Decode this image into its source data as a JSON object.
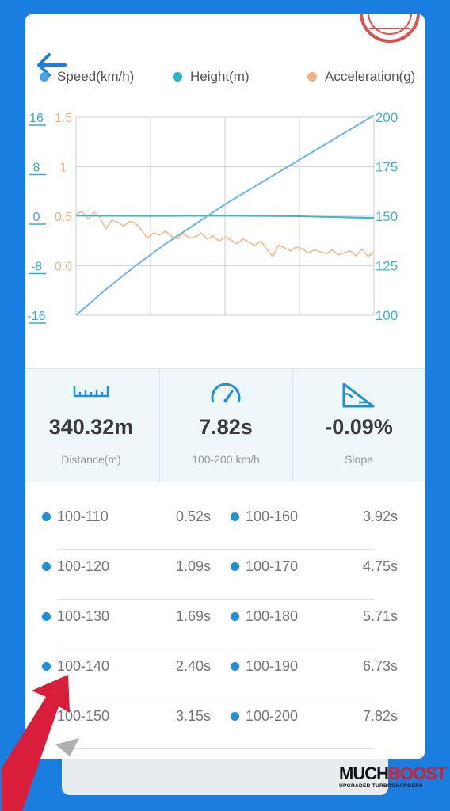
{
  "legend": [
    {
      "label": "Speed(km/h)",
      "color": "#4aa3df"
    },
    {
      "label": "Height(m)",
      "color": "#2bb7c9"
    },
    {
      "label": "Acceleration(g)",
      "color": "#f0b483"
    }
  ],
  "chart_data": {
    "type": "line",
    "left_axis_speed_ticks": [
      "16",
      "8",
      "0",
      "-8",
      "-16"
    ],
    "left_axis_accel_ticks": [
      "1.5",
      "1",
      "0.5",
      "0.0"
    ],
    "right_axis_ticks": [
      "200",
      "175",
      "150",
      "125",
      "100"
    ],
    "speed_range": [
      100,
      200
    ],
    "accel_range": [
      -0.5,
      1.5
    ],
    "height_range": [
      -16,
      16
    ],
    "series": [
      {
        "name": "Speed(km/h)",
        "color": "#6cb6e0",
        "x": [
          0,
          0.1,
          0.2,
          0.3,
          0.4,
          0.5,
          0.6,
          0.7,
          0.8,
          0.9,
          1.0
        ],
        "y": [
          100,
          113,
          125,
          136,
          146,
          156,
          165,
          174,
          183,
          192,
          201
        ]
      },
      {
        "name": "Height(m)",
        "color": "#39b8c6",
        "x": [
          0,
          0.25,
          0.5,
          0.75,
          1.0
        ],
        "y": [
          0.1,
          0.05,
          0.1,
          0.0,
          -0.3
        ]
      },
      {
        "name": "Acceleration(g)",
        "color": "#f2b98c",
        "x": [
          0,
          0.02,
          0.04,
          0.06,
          0.08,
          0.1,
          0.12,
          0.14,
          0.16,
          0.18,
          0.2,
          0.22,
          0.24,
          0.26,
          0.28,
          0.3,
          0.32,
          0.34,
          0.36,
          0.38,
          0.4,
          0.42,
          0.44,
          0.46,
          0.48,
          0.5,
          0.52,
          0.54,
          0.56,
          0.58,
          0.6,
          0.62,
          0.64,
          0.66,
          0.68,
          0.7,
          0.72,
          0.74,
          0.76,
          0.78,
          0.8,
          0.82,
          0.84,
          0.86,
          0.88,
          0.9,
          0.92,
          0.94,
          0.96,
          0.98,
          1.0
        ],
        "y": [
          0.52,
          0.55,
          0.47,
          0.54,
          0.49,
          0.37,
          0.46,
          0.44,
          0.4,
          0.45,
          0.43,
          0.36,
          0.28,
          0.33,
          0.31,
          0.35,
          0.3,
          0.27,
          0.33,
          0.28,
          0.29,
          0.33,
          0.27,
          0.3,
          0.25,
          0.29,
          0.26,
          0.22,
          0.27,
          0.24,
          0.2,
          0.25,
          0.17,
          0.09,
          0.21,
          0.18,
          0.15,
          0.19,
          0.17,
          0.13,
          0.16,
          0.14,
          0.12,
          0.16,
          0.11,
          0.13,
          0.15,
          0.1,
          0.17,
          0.09,
          0.14
        ]
      }
    ]
  },
  "stats": [
    {
      "value": "340.32m",
      "label": "Distance(m)",
      "icon": "ruler-icon"
    },
    {
      "value": "7.82s",
      "label": "100-200 km/h",
      "icon": "speedometer-icon"
    },
    {
      "value": "-0.09%",
      "label": "Slope",
      "icon": "slope-icon"
    }
  ],
  "times": [
    {
      "left_range": "100-110",
      "left_time": "0.52s",
      "right_range": "100-160",
      "right_time": "3.92s"
    },
    {
      "left_range": "100-120",
      "left_time": "1.09s",
      "right_range": "100-170",
      "right_time": "4.75s"
    },
    {
      "left_range": "100-130",
      "left_time": "1.69s",
      "right_range": "100-180",
      "right_time": "5.71s"
    },
    {
      "left_range": "100-140",
      "left_time": "2.40s",
      "right_range": "100-190",
      "right_time": "6.73s"
    },
    {
      "left_range": "100-150",
      "left_time": "3.15s",
      "right_range": "100-200",
      "right_time": "7.82s"
    }
  ],
  "logo": {
    "main_a": "MUCH",
    "main_b": "BOOST",
    "sub": "UPGRADED TURBOCHARGERS"
  }
}
